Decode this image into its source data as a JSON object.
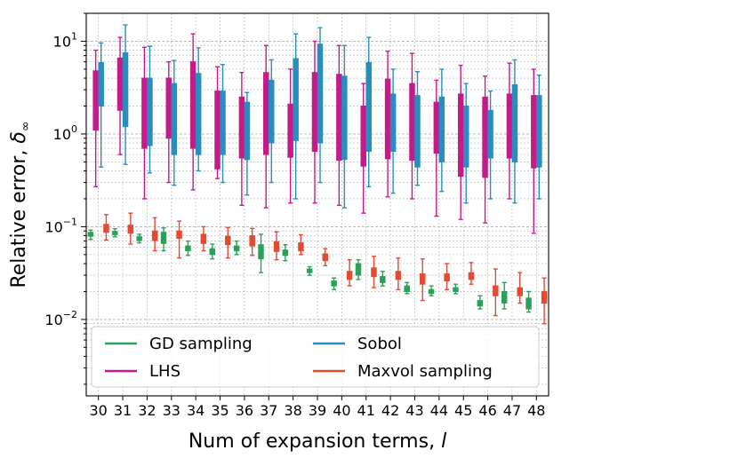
{
  "chart_data": {
    "type": "boxplot",
    "title": "",
    "xlabel": "Num of expansion terms, l",
    "xlabel_main": "Num of expansion terms, ",
    "xlabel_var": "l",
    "ylabel": "Relative error, δ∞",
    "ylabel_main": "Relative error, ",
    "ylabel_var": "δ",
    "ylabel_sub": "∞",
    "yscale": "log",
    "ylim": [
      0.0015,
      20
    ],
    "y_ticks": [
      {
        "value": 10,
        "base": "10",
        "exp": "1"
      },
      {
        "value": 1,
        "base": "10",
        "exp": "0"
      },
      {
        "value": 0.1,
        "base": "10",
        "exp": "−1"
      },
      {
        "value": 0.01,
        "base": "10",
        "exp": "−2"
      }
    ],
    "categories": [
      "30",
      "31",
      "32",
      "33",
      "34",
      "35",
      "36",
      "37",
      "38",
      "39",
      "40",
      "41",
      "42",
      "43",
      "44",
      "45",
      "46",
      "47",
      "48"
    ],
    "legend": {
      "location": "lower left",
      "ncol": 2
    },
    "series": [
      {
        "name": "GD sampling",
        "color": "#2ca05a",
        "boxes": [
          {
            "whislo": 0.073,
            "q1": 0.079,
            "med": 0.083,
            "q3": 0.087,
            "whishi": 0.092
          },
          {
            "whislo": 0.078,
            "q1": 0.082,
            "med": 0.085,
            "q3": 0.089,
            "whishi": 0.095
          },
          {
            "whislo": 0.067,
            "q1": 0.071,
            "med": 0.074,
            "q3": 0.078,
            "whishi": 0.083
          },
          {
            "whislo": 0.055,
            "q1": 0.066,
            "med": 0.074,
            "q3": 0.087,
            "whishi": 0.097
          },
          {
            "whislo": 0.049,
            "q1": 0.055,
            "med": 0.058,
            "q3": 0.062,
            "whishi": 0.07
          },
          {
            "whislo": 0.045,
            "q1": 0.05,
            "med": 0.053,
            "q3": 0.058,
            "whishi": 0.065
          },
          {
            "whislo": 0.05,
            "q1": 0.055,
            "med": 0.058,
            "q3": 0.062,
            "whishi": 0.07
          },
          {
            "whislo": 0.032,
            "q1": 0.045,
            "med": 0.052,
            "q3": 0.064,
            "whishi": 0.083
          },
          {
            "whislo": 0.043,
            "q1": 0.049,
            "med": 0.052,
            "q3": 0.056,
            "whishi": 0.064
          },
          {
            "whislo": 0.03,
            "q1": 0.032,
            "med": 0.034,
            "q3": 0.035,
            "whishi": 0.037
          },
          {
            "whislo": 0.021,
            "q1": 0.023,
            "med": 0.025,
            "q3": 0.026,
            "whishi": 0.028
          },
          {
            "whislo": 0.027,
            "q1": 0.03,
            "med": 0.034,
            "q3": 0.04,
            "whishi": 0.044
          },
          {
            "whislo": 0.023,
            "q1": 0.025,
            "med": 0.027,
            "q3": 0.029,
            "whishi": 0.033
          },
          {
            "whislo": 0.019,
            "q1": 0.02,
            "med": 0.021,
            "q3": 0.023,
            "whishi": 0.025
          },
          {
            "whislo": 0.018,
            "q1": 0.019,
            "med": 0.02,
            "q3": 0.021,
            "whishi": 0.023
          },
          {
            "whislo": 0.019,
            "q1": 0.02,
            "med": 0.021,
            "q3": 0.022,
            "whishi": 0.024
          },
          {
            "whislo": 0.013,
            "q1": 0.014,
            "med": 0.015,
            "q3": 0.016,
            "whishi": 0.018
          },
          {
            "whislo": 0.013,
            "q1": 0.015,
            "med": 0.017,
            "q3": 0.02,
            "whishi": 0.025
          },
          {
            "whislo": 0.012,
            "q1": 0.013,
            "med": 0.015,
            "q3": 0.017,
            "whishi": 0.02
          }
        ]
      },
      {
        "name": "LHS",
        "color": "#c51b8a",
        "boxes": [
          {
            "whislo": 0.27,
            "q1": 1.1,
            "med": 2.0,
            "q3": 4.8,
            "whishi": 8.0
          },
          {
            "whislo": 0.6,
            "q1": 1.8,
            "med": 2.7,
            "q3": 6.6,
            "whishi": 11.0
          },
          {
            "whislo": 0.2,
            "q1": 0.7,
            "med": 1.6,
            "q3": 4.0,
            "whishi": 8.6
          },
          {
            "whislo": 0.3,
            "q1": 0.9,
            "med": 2.0,
            "q3": 4.0,
            "whishi": 6.0
          },
          {
            "whislo": 0.25,
            "q1": 0.7,
            "med": 1.6,
            "q3": 6.0,
            "whishi": 12.0
          },
          {
            "whislo": 0.33,
            "q1": 0.42,
            "med": 1.2,
            "q3": 2.9,
            "whishi": 5.3
          },
          {
            "whislo": 0.17,
            "q1": 0.55,
            "med": 0.95,
            "q3": 2.5,
            "whishi": 4.6
          },
          {
            "whislo": 0.16,
            "q1": 0.6,
            "med": 1.4,
            "q3": 4.6,
            "whishi": 9.0
          },
          {
            "whislo": 0.18,
            "q1": 0.56,
            "med": 1.1,
            "q3": 2.1,
            "whishi": 5.0
          },
          {
            "whislo": 0.18,
            "q1": 0.65,
            "med": 1.9,
            "q3": 4.6,
            "whishi": 10.0
          },
          {
            "whislo": 0.17,
            "q1": 0.52,
            "med": 1.0,
            "q3": 4.4,
            "whishi": 9.0
          },
          {
            "whislo": 0.14,
            "q1": 0.45,
            "med": 0.85,
            "q3": 2.0,
            "whishi": 3.5
          },
          {
            "whislo": 0.21,
            "q1": 0.54,
            "med": 1.1,
            "q3": 3.9,
            "whishi": 7.8
          },
          {
            "whislo": 0.2,
            "q1": 0.52,
            "med": 1.2,
            "q3": 3.5,
            "whishi": 7.4
          },
          {
            "whislo": 0.13,
            "q1": 0.62,
            "med": 1.1,
            "q3": 2.2,
            "whishi": 3.8
          },
          {
            "whislo": 0.12,
            "q1": 0.35,
            "med": 0.9,
            "q3": 2.7,
            "whishi": 5.5
          },
          {
            "whislo": 0.11,
            "q1": 0.34,
            "med": 0.8,
            "q3": 2.5,
            "whishi": 4.2
          },
          {
            "whislo": 0.2,
            "q1": 0.55,
            "med": 0.9,
            "q3": 2.7,
            "whishi": 5.8
          },
          {
            "whislo": 0.085,
            "q1": 0.43,
            "med": 0.95,
            "q3": 2.6,
            "whishi": 5.0
          }
        ]
      },
      {
        "name": "Sobol",
        "color": "#2b8cbe",
        "boxes": [
          {
            "whislo": 0.44,
            "q1": 2.0,
            "med": 3.6,
            "q3": 5.9,
            "whishi": 9.6
          },
          {
            "whislo": 0.47,
            "q1": 1.2,
            "med": 4.8,
            "q3": 7.5,
            "whishi": 15.0
          },
          {
            "whislo": 0.38,
            "q1": 0.75,
            "med": 1.6,
            "q3": 4.0,
            "whishi": 8.8
          },
          {
            "whislo": 0.28,
            "q1": 0.6,
            "med": 1.0,
            "q3": 3.5,
            "whishi": 6.2
          },
          {
            "whislo": 0.4,
            "q1": 0.6,
            "med": 1.0,
            "q3": 4.5,
            "whishi": 8.5
          },
          {
            "whislo": 0.3,
            "q1": 0.6,
            "med": 0.9,
            "q3": 2.9,
            "whishi": 5.6
          },
          {
            "whislo": 0.22,
            "q1": 0.53,
            "med": 0.8,
            "q3": 2.2,
            "whishi": 2.8
          },
          {
            "whislo": 0.3,
            "q1": 0.8,
            "med": 1.2,
            "q3": 3.8,
            "whishi": 6.3
          },
          {
            "whislo": 0.2,
            "q1": 0.85,
            "med": 1.2,
            "q3": 6.5,
            "whishi": 12.0
          },
          {
            "whislo": 0.3,
            "q1": 0.8,
            "med": 3.6,
            "q3": 9.3,
            "whishi": 14.0
          },
          {
            "whislo": 0.16,
            "q1": 0.53,
            "med": 0.95,
            "q3": 4.2,
            "whishi": 9.0
          },
          {
            "whislo": 0.27,
            "q1": 0.65,
            "med": 1.4,
            "q3": 5.9,
            "whishi": 11.0
          },
          {
            "whislo": 0.23,
            "q1": 0.65,
            "med": 1.0,
            "q3": 2.7,
            "whishi": 5.0
          },
          {
            "whislo": 0.28,
            "q1": 0.44,
            "med": 1.0,
            "q3": 2.6,
            "whishi": 4.7
          },
          {
            "whislo": 0.24,
            "q1": 0.5,
            "med": 0.85,
            "q3": 2.5,
            "whishi": 5.0
          },
          {
            "whislo": 0.18,
            "q1": 0.44,
            "med": 0.9,
            "q3": 2.0,
            "whishi": 3.5
          },
          {
            "whislo": 0.2,
            "q1": 0.55,
            "med": 0.85,
            "q3": 1.8,
            "whishi": 2.9
          },
          {
            "whislo": 0.18,
            "q1": 0.5,
            "med": 1.1,
            "q3": 3.4,
            "whishi": 6.3
          },
          {
            "whislo": 0.2,
            "q1": 0.44,
            "med": 0.95,
            "q3": 2.6,
            "whishi": 4.3
          }
        ]
      },
      {
        "name": "Maxvol sampling",
        "color": "#e34a33",
        "boxes": [
          {
            "whislo": 0.072,
            "q1": 0.087,
            "med": 0.097,
            "q3": 0.106,
            "whishi": 0.135
          },
          {
            "whislo": 0.065,
            "q1": 0.085,
            "med": 0.094,
            "q3": 0.104,
            "whishi": 0.14
          },
          {
            "whislo": 0.055,
            "q1": 0.071,
            "med": 0.08,
            "q3": 0.09,
            "whishi": 0.125
          },
          {
            "whislo": 0.046,
            "q1": 0.075,
            "med": 0.083,
            "q3": 0.09,
            "whishi": 0.115
          },
          {
            "whislo": 0.055,
            "q1": 0.066,
            "med": 0.074,
            "q3": 0.083,
            "whishi": 0.1
          },
          {
            "whislo": 0.046,
            "q1": 0.064,
            "med": 0.071,
            "q3": 0.079,
            "whishi": 0.098
          },
          {
            "whislo": 0.049,
            "q1": 0.062,
            "med": 0.07,
            "q3": 0.08,
            "whishi": 0.096
          },
          {
            "whislo": 0.044,
            "q1": 0.054,
            "med": 0.062,
            "q3": 0.069,
            "whishi": 0.088
          },
          {
            "whislo": 0.05,
            "q1": 0.055,
            "med": 0.059,
            "q3": 0.067,
            "whishi": 0.082
          },
          {
            "whislo": 0.038,
            "q1": 0.043,
            "med": 0.047,
            "q3": 0.051,
            "whishi": 0.058
          },
          {
            "whislo": 0.023,
            "q1": 0.027,
            "med": 0.03,
            "q3": 0.033,
            "whishi": 0.044
          },
          {
            "whislo": 0.022,
            "q1": 0.029,
            "med": 0.033,
            "q3": 0.036,
            "whishi": 0.048
          },
          {
            "whislo": 0.021,
            "q1": 0.027,
            "med": 0.03,
            "q3": 0.033,
            "whishi": 0.046
          },
          {
            "whislo": 0.016,
            "q1": 0.024,
            "med": 0.028,
            "q3": 0.031,
            "whishi": 0.045
          },
          {
            "whislo": 0.021,
            "q1": 0.026,
            "med": 0.028,
            "q3": 0.031,
            "whishi": 0.04
          },
          {
            "whislo": 0.024,
            "q1": 0.027,
            "med": 0.03,
            "q3": 0.032,
            "whishi": 0.041
          },
          {
            "whislo": 0.011,
            "q1": 0.018,
            "med": 0.021,
            "q3": 0.023,
            "whishi": 0.035
          },
          {
            "whislo": 0.015,
            "q1": 0.018,
            "med": 0.02,
            "q3": 0.022,
            "whishi": 0.032
          },
          {
            "whislo": 0.009,
            "q1": 0.015,
            "med": 0.018,
            "q3": 0.02,
            "whishi": 0.028
          }
        ]
      }
    ]
  }
}
